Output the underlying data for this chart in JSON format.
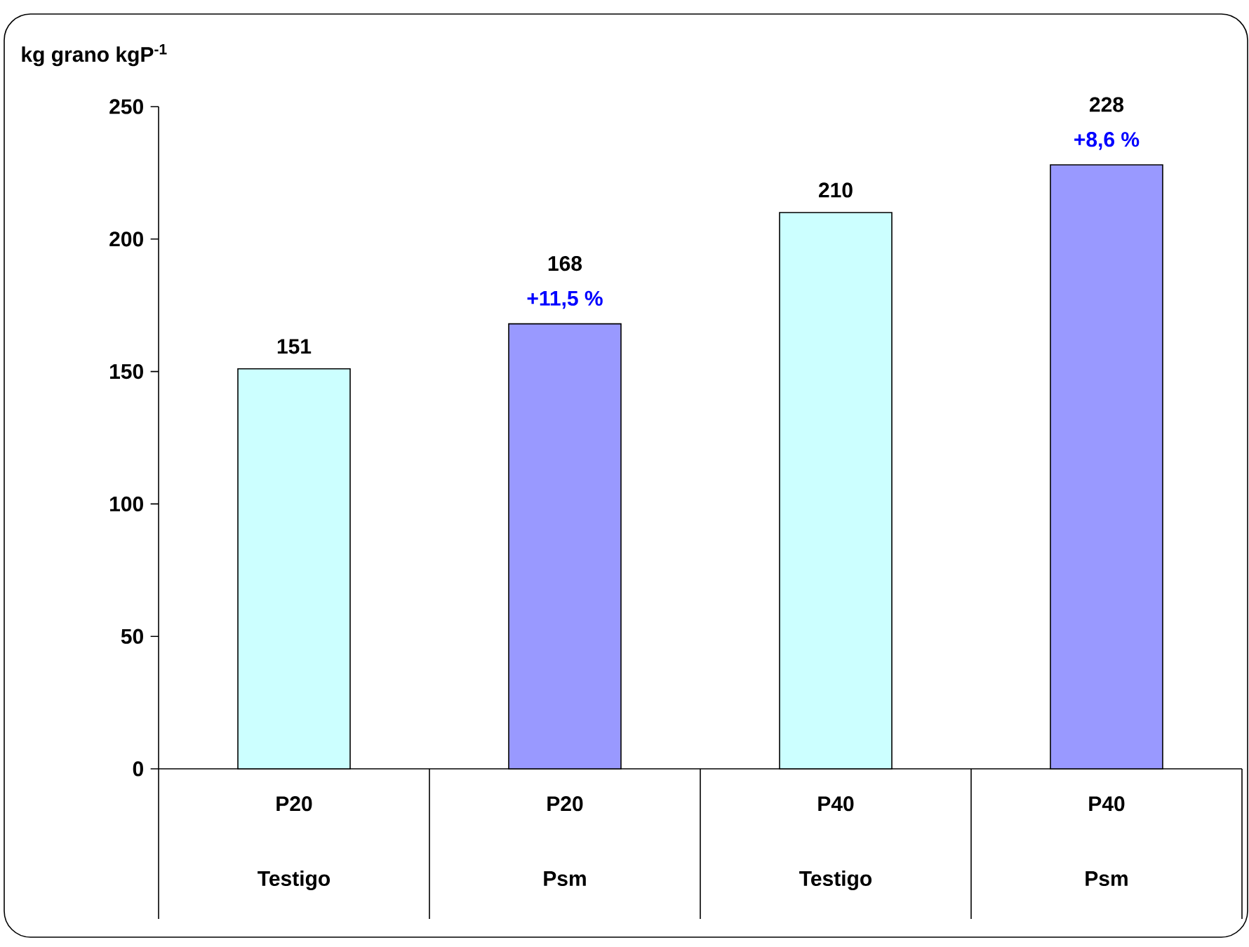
{
  "chart_data": {
    "type": "bar",
    "ylabel": "kg grano kgP$^{-1}$",
    "categories": [
      "P20 Testigo",
      "P20 Psm",
      "P40 Testigo",
      "P40 Psm"
    ],
    "values": [
      151,
      168,
      210,
      228
    ],
    "colors": [
      "#ccffff",
      "#9999ff",
      "#ccffff",
      "#9999ff"
    ],
    "ylim": [
      0,
      250
    ],
    "yticks": [
      0,
      50,
      100,
      150,
      200,
      250
    ],
    "grid": false,
    "data_labels": true,
    "annotations": [
      {
        "text": "+11,5 %",
        "x": "P20 Psm",
        "y": 168
      },
      {
        "text": "+8,6 %",
        "x": "P40 Psm",
        "y": 228
      }
    ]
  }
}
